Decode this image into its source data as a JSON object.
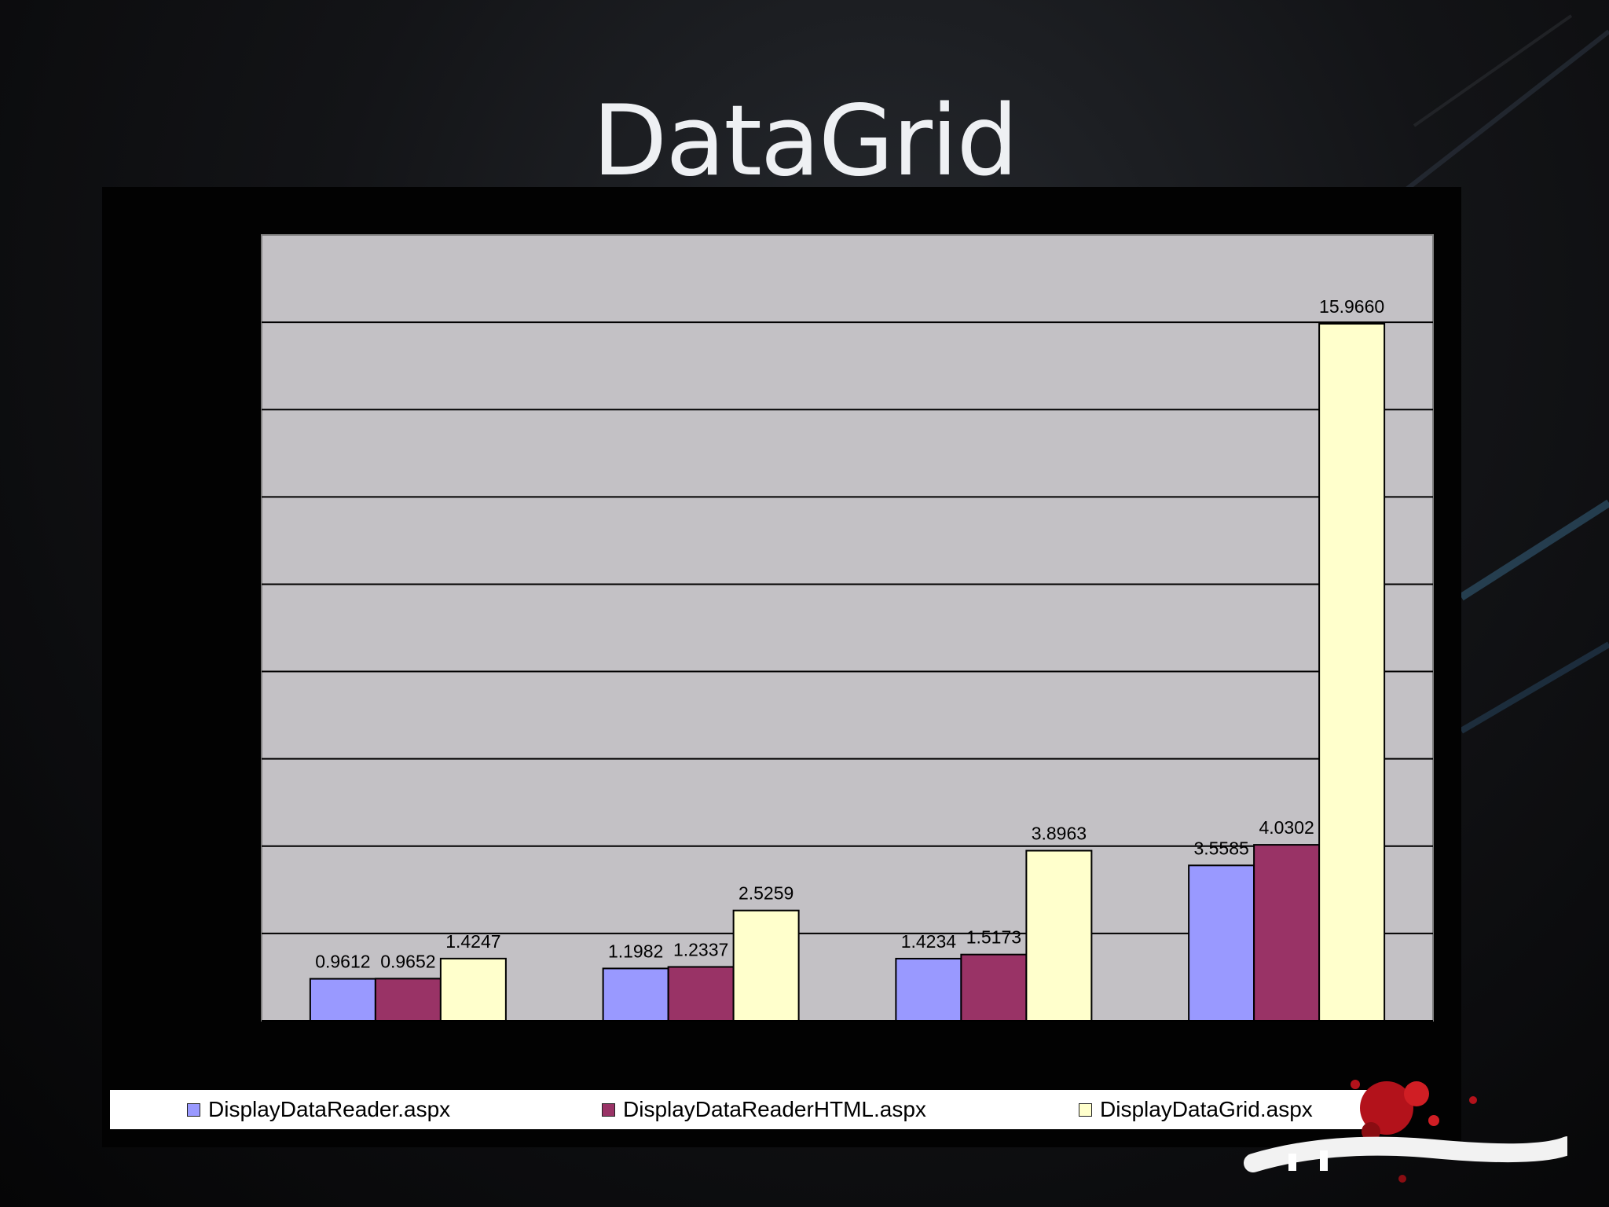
{
  "slide": {
    "title": "DataGrid"
  },
  "colors": {
    "plot_background": "#c3c1c5",
    "gridline": "#000000",
    "series": [
      "#9999ff",
      "#993366",
      "#ffffcc"
    ]
  },
  "chart_data": {
    "type": "bar",
    "title": "",
    "xlabel": "",
    "ylabel": "",
    "ylim": [
      0,
      18
    ],
    "gridlines": [
      2,
      4,
      6,
      8,
      10,
      12,
      14,
      16
    ],
    "grid": "horizontal",
    "legend_position": "bottom",
    "categories": [
      "",
      "",
      "",
      ""
    ],
    "series": [
      {
        "name": "DisplayDataReader.aspx",
        "values": [
          0.9612,
          1.1982,
          1.4234,
          3.5585
        ],
        "labels": [
          "0.9612",
          "1.1982",
          "1.4234",
          "3.5585"
        ]
      },
      {
        "name": "DisplayDataReaderHTML.aspx",
        "values": [
          0.9652,
          1.2337,
          1.5173,
          4.0302
        ],
        "labels": [
          "0.9652",
          "1.2337",
          "1.5173",
          "4.0302"
        ]
      },
      {
        "name": "DisplayDataGrid.aspx",
        "values": [
          1.4247,
          2.5259,
          3.8963,
          15.966
        ],
        "labels": [
          "1.4247",
          "2.5259",
          "3.8963",
          "15.9660"
        ]
      }
    ]
  }
}
